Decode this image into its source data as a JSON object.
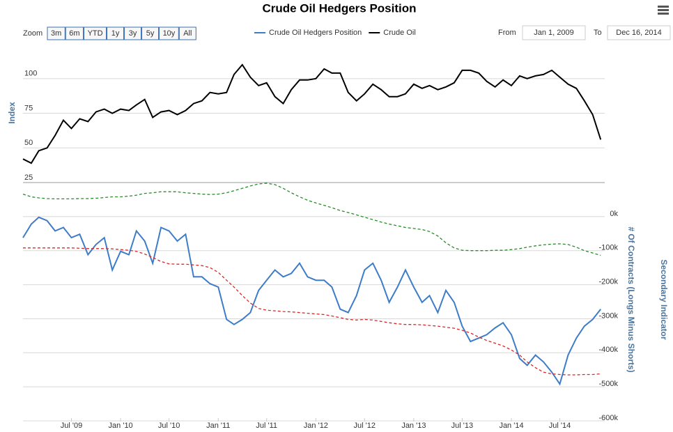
{
  "chart_data": {
    "type": "line",
    "title": "Crude Oil Hedgers Position",
    "zoom_label": "Zoom",
    "zoom_buttons": [
      "3m",
      "6m",
      "YTD",
      "1y",
      "3y",
      "5y",
      "10y",
      "All"
    ],
    "from_label": "From",
    "from_value": "Jan 1, 2009",
    "to_label": "To",
    "to_value": "Dec 16, 2014",
    "y_label": "Index",
    "y2_label": "# Of Contracts (Longs Minus Shorts)",
    "y3_label": "Secondary Indicator",
    "grid": true,
    "xlim": [
      "2009-01-01",
      "2014-12-16"
    ],
    "xticks": [
      {
        "value": "2009-07",
        "label": "Jul '09"
      },
      {
        "value": "2010-01",
        "label": "Jan '10"
      },
      {
        "value": "2010-07",
        "label": "Jul '10"
      },
      {
        "value": "2011-01",
        "label": "Jan '11"
      },
      {
        "value": "2011-07",
        "label": "Jul '11"
      },
      {
        "value": "2012-01",
        "label": "Jan '12"
      },
      {
        "value": "2012-07",
        "label": "Jul '12"
      },
      {
        "value": "2013-01",
        "label": "Jan '13"
      },
      {
        "value": "2013-07",
        "label": "Jul '13"
      },
      {
        "value": "2014-01",
        "label": "Jan '14"
      },
      {
        "value": "2014-07",
        "label": "Jul '14"
      }
    ],
    "ylim": [
      25,
      115
    ],
    "yticks": [
      25,
      50,
      75,
      100
    ],
    "y2lim": [
      -600000,
      92000
    ],
    "y2ticks": [
      {
        "value": 0,
        "label": "0k"
      },
      {
        "value": -100000,
        "label": "-100k"
      },
      {
        "value": -200000,
        "label": "-200k"
      },
      {
        "value": -300000,
        "label": "-300k"
      },
      {
        "value": -400000,
        "label": "-400k"
      },
      {
        "value": -500000,
        "label": "-500k"
      },
      {
        "value": -600000,
        "label": "-600k"
      }
    ],
    "x": [
      "2009-01",
      "2009-02",
      "2009-03",
      "2009-04",
      "2009-05",
      "2009-06",
      "2009-07",
      "2009-08",
      "2009-09",
      "2009-10",
      "2009-11",
      "2009-12",
      "2010-01",
      "2010-02",
      "2010-03",
      "2010-04",
      "2010-05",
      "2010-06",
      "2010-07",
      "2010-08",
      "2010-09",
      "2010-10",
      "2010-11",
      "2010-12",
      "2011-01",
      "2011-02",
      "2011-03",
      "2011-04",
      "2011-05",
      "2011-06",
      "2011-07",
      "2011-08",
      "2011-09",
      "2011-10",
      "2011-11",
      "2011-12",
      "2012-01",
      "2012-02",
      "2012-03",
      "2012-04",
      "2012-05",
      "2012-06",
      "2012-07",
      "2012-08",
      "2012-09",
      "2012-10",
      "2012-11",
      "2012-12",
      "2013-01",
      "2013-02",
      "2013-03",
      "2013-04",
      "2013-05",
      "2013-06",
      "2013-07",
      "2013-08",
      "2013-09",
      "2013-10",
      "2013-11",
      "2013-12",
      "2014-01",
      "2014-02",
      "2014-03",
      "2014-04",
      "2014-05",
      "2014-06",
      "2014-07",
      "2014-08",
      "2014-09",
      "2014-10",
      "2014-11",
      "2014-12"
    ],
    "series": [
      {
        "name": "Crude Oil Hedgers Position",
        "color": "#3d7cc9",
        "axis": "y2",
        "values": [
          -70000,
          -30000,
          -10000,
          -20000,
          -50000,
          -40000,
          -70000,
          -60000,
          -120000,
          -90000,
          -70000,
          -165000,
          -110000,
          -120000,
          -50000,
          -80000,
          -145000,
          -40000,
          -50000,
          -80000,
          -60000,
          -185000,
          -185000,
          -205000,
          -215000,
          -310000,
          -325000,
          -310000,
          -290000,
          -225000,
          -195000,
          -165000,
          -185000,
          -175000,
          -145000,
          -185000,
          -195000,
          -195000,
          -215000,
          -280000,
          -290000,
          -240000,
          -165000,
          -145000,
          -195000,
          -260000,
          -215000,
          -165000,
          -215000,
          -260000,
          -240000,
          -290000,
          -225000,
          -260000,
          -330000,
          -375000,
          -365000,
          -355000,
          -335000,
          -320000,
          -355000,
          -425000,
          -445000,
          -415000,
          -435000,
          -465000,
          -500000,
          -415000,
          -365000,
          -330000,
          -310000,
          -280000
        ]
      },
      {
        "name": "Crude Oil",
        "color": "#000000",
        "values": [
          42,
          39,
          48,
          50,
          59,
          70,
          64,
          71,
          69,
          76,
          78,
          75,
          78,
          77,
          81,
          85,
          72,
          76,
          77,
          74,
          77,
          82,
          84,
          90,
          89,
          90,
          103,
          110,
          101,
          95,
          97,
          87,
          82,
          92,
          99,
          99,
          100,
          107,
          104,
          104,
          90,
          84,
          89,
          96,
          92,
          87,
          87,
          89,
          96,
          93,
          95,
          92,
          94,
          97,
          106,
          106,
          104,
          98,
          94,
          99,
          95,
          102,
          100,
          102,
          103,
          106,
          101,
          96,
          93,
          84,
          74,
          56
        ]
      },
      {
        "color": "#2a8a2a",
        "dash": true,
        "axis": "y2",
        "values": [
          58000,
          50000,
          47000,
          45000,
          44000,
          44000,
          44000,
          45000,
          45000,
          46000,
          48000,
          50000,
          50000,
          52000,
          55000,
          60000,
          62000,
          65000,
          65000,
          65000,
          62000,
          60000,
          58000,
          57000,
          58000,
          62000,
          68000,
          75000,
          82000,
          88000,
          90000,
          86000,
          75000,
          62000,
          50000,
          40000,
          32000,
          25000,
          18000,
          10000,
          4000,
          -3000,
          -10000,
          -17000,
          -24000,
          -30000,
          -35000,
          -40000,
          -43000,
          -46000,
          -52000,
          -65000,
          -85000,
          -100000,
          -107000,
          -108000,
          -108000,
          -108000,
          -107000,
          -107000,
          -105000,
          -102000,
          -98000,
          -94000,
          -91000,
          -89000,
          -88000,
          -90000,
          -98000,
          -108000,
          -115000,
          -122000
        ]
      },
      {
        "color": "#d42a2a",
        "dash": true,
        "axis": "y2",
        "values": [
          -100000,
          -100000,
          -100000,
          -100000,
          -100000,
          -100000,
          -100000,
          -101000,
          -102000,
          -102000,
          -102000,
          -103000,
          -105000,
          -107000,
          -110000,
          -118000,
          -128000,
          -140000,
          -147000,
          -148000,
          -148000,
          -150000,
          -152000,
          -158000,
          -172000,
          -195000,
          -215000,
          -240000,
          -262000,
          -278000,
          -283000,
          -285000,
          -287000,
          -288000,
          -290000,
          -292000,
          -294000,
          -296000,
          -300000,
          -305000,
          -310000,
          -312000,
          -310000,
          -312000,
          -316000,
          -320000,
          -323000,
          -325000,
          -325000,
          -326000,
          -328000,
          -330000,
          -333000,
          -336000,
          -342000,
          -350000,
          -362000,
          -372000,
          -380000,
          -388000,
          -400000,
          -415000,
          -435000,
          -452000,
          -465000,
          -470000,
          -472000,
          -473000,
          -473000,
          -472000,
          -472000,
          -470000
        ]
      }
    ]
  }
}
